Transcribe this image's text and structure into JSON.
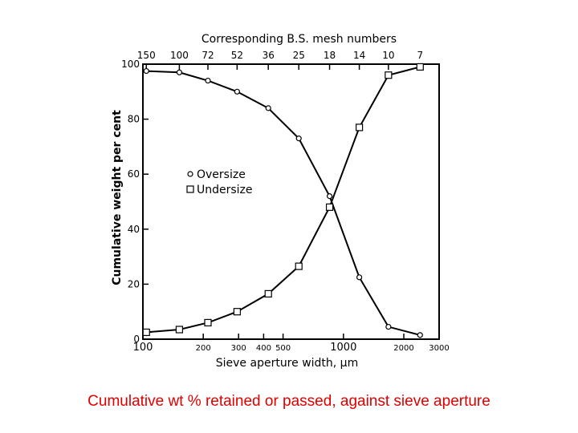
{
  "caption": "Cumulative wt % retained or passed, against sieve aperture",
  "chart_data": {
    "type": "line",
    "title": "",
    "top_axis_label": "Corresponding B.S. mesh numbers",
    "xlabel": "Sieve aperture width, µm",
    "ylabel": "Cumulative weight per cent",
    "x_scale": "log",
    "xlim": [
      100,
      3000
    ],
    "ylim": [
      0,
      100
    ],
    "x_ticks": [
      {
        "value": 100,
        "label": "100"
      },
      {
        "value": 200,
        "label": "200"
      },
      {
        "value": 300,
        "label": "300"
      },
      {
        "value": 400,
        "label": "400"
      },
      {
        "value": 500,
        "label": "500"
      },
      {
        "value": 1000,
        "label": "1000"
      },
      {
        "value": 2000,
        "label": "2000"
      },
      {
        "value": 3000,
        "label": "3000"
      }
    ],
    "y_ticks": [
      0,
      20,
      40,
      60,
      80,
      100
    ],
    "top_ticks": [
      {
        "value": 104,
        "label": "150"
      },
      {
        "value": 152,
        "label": "100"
      },
      {
        "value": 211,
        "label": "72"
      },
      {
        "value": 295,
        "label": "52"
      },
      {
        "value": 422,
        "label": "36"
      },
      {
        "value": 599,
        "label": "25"
      },
      {
        "value": 853,
        "label": "18"
      },
      {
        "value": 1200,
        "label": "14"
      },
      {
        "value": 1676,
        "label": "10"
      },
      {
        "value": 2411,
        "label": "7"
      }
    ],
    "legend": {
      "position": "center-left",
      "entries": [
        "Oversize",
        "Undersize"
      ]
    },
    "series": [
      {
        "name": "Oversize",
        "marker": "circle",
        "x": [
          104,
          152,
          211,
          295,
          422,
          599,
          853,
          1200,
          1676,
          2411
        ],
        "y": [
          97.5,
          97,
          94,
          90,
          84,
          73,
          52,
          22.5,
          4.5,
          1.5
        ]
      },
      {
        "name": "Undersize",
        "marker": "square",
        "x": [
          104,
          152,
          211,
          295,
          422,
          599,
          853,
          1200,
          1676,
          2411
        ],
        "y": [
          2.5,
          3.5,
          6,
          10,
          16.5,
          26.5,
          48,
          77,
          96,
          99
        ]
      }
    ]
  }
}
